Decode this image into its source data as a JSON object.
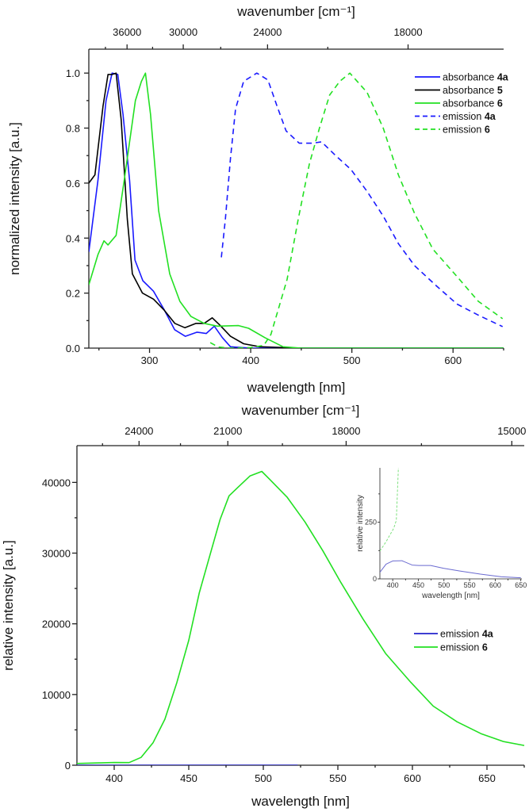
{
  "chart_data": [
    {
      "type": "line",
      "title": "",
      "xlabel": "wavelength [nm]",
      "ylabel": "normalized intensity [a.u.]",
      "x2label": "wavenumber [cm⁻¹]",
      "xlim": [
        240,
        650
      ],
      "ylim": [
        0,
        1.087
      ],
      "xticks": [
        300,
        400,
        500,
        600
      ],
      "xtick_labels": [
        "300",
        "400",
        "500",
        "600"
      ],
      "xminor": [
        250,
        350,
        450,
        550,
        650
      ],
      "yticks": [
        0,
        0.2,
        0.4,
        0.6,
        0.8,
        1.0
      ],
      "ytick_labels": [
        "0.0",
        "0.2",
        "0.4",
        "0.6",
        "0.8",
        "1.0"
      ],
      "yminor": [
        0.1,
        0.3,
        0.5,
        0.7,
        0.9
      ],
      "x2ticks": [
        36000,
        30000,
        24000,
        18000
      ],
      "x2tick_labels": [
        "36000",
        "30000",
        "24000",
        "18000"
      ],
      "x2minor": [
        39000,
        33000,
        27000,
        21000
      ],
      "legend": "top-right",
      "grid": false,
      "series": [
        {
          "label": "absorbance",
          "compound": "4a",
          "color": "#1a1aff",
          "dash": "solid",
          "x": [
            240,
            249,
            257,
            263,
            268.6,
            273.8,
            280.3,
            285.6,
            293.4,
            303.9,
            314.4,
            324.8,
            335.3,
            347,
            356,
            364,
            372,
            380,
            400,
            650
          ],
          "y": [
            0.35,
            0.61,
            0.9,
            1.0,
            0.995,
            0.85,
            0.61,
            0.32,
            0.245,
            0.207,
            0.14,
            0.067,
            0.043,
            0.058,
            0.053,
            0.08,
            0.038,
            0.005,
            0,
            0
          ]
        },
        {
          "label": "absorbance",
          "compound": "5",
          "color": "#000000",
          "dash": "solid",
          "x": [
            240,
            246,
            254,
            259,
            263,
            267,
            272,
            278,
            283,
            293,
            304,
            314,
            325,
            335,
            346,
            354,
            362,
            370,
            380,
            393,
            409,
            450,
            650
          ],
          "y": [
            0.6,
            0.63,
            0.88,
            0.995,
            0.995,
            1.0,
            0.83,
            0.47,
            0.27,
            0.2,
            0.178,
            0.14,
            0.09,
            0.074,
            0.09,
            0.09,
            0.11,
            0.082,
            0.043,
            0.016,
            0.005,
            0,
            0
          ]
        },
        {
          "label": "absorbance",
          "compound": "6",
          "color": "#22e022",
          "dash": "solid",
          "x": [
            240,
            249,
            255,
            259,
            267,
            275,
            286,
            292,
            296,
            301,
            309,
            320,
            330,
            341,
            354,
            367,
            388,
            398,
            414,
            432,
            450,
            650
          ],
          "y": [
            0.23,
            0.34,
            0.39,
            0.375,
            0.41,
            0.61,
            0.9,
            0.97,
            1.0,
            0.85,
            0.5,
            0.27,
            0.17,
            0.115,
            0.09,
            0.08,
            0.082,
            0.072,
            0.038,
            0.005,
            0,
            0
          ]
        },
        {
          "label": "emission",
          "compound": "4a",
          "color": "#1a1aff",
          "dash": "dashed",
          "x": [
            371,
            375,
            380,
            385,
            393,
            406,
            417,
            426,
            435,
            448,
            461,
            470,
            484,
            499,
            515,
            531,
            546,
            562,
            584,
            604,
            625,
            649
          ],
          "y": [
            0.33,
            0.47,
            0.69,
            0.87,
            0.97,
            1.0,
            0.975,
            0.88,
            0.79,
            0.745,
            0.745,
            0.75,
            0.7,
            0.65,
            0.57,
            0.48,
            0.38,
            0.3,
            0.225,
            0.16,
            0.12,
            0.078
          ]
        },
        {
          "label": "emission",
          "compound": "6",
          "color": "#22e022",
          "dash": "dashed",
          "x": [
            360,
            368,
            380,
            400,
            413,
            420,
            436,
            447,
            458,
            468,
            478,
            488,
            498,
            515,
            531,
            546,
            562,
            580,
            604,
            625,
            649
          ],
          "y": [
            0.02,
            0.004,
            0,
            0.002,
            0.01,
            0.05,
            0.25,
            0.47,
            0.67,
            0.8,
            0.92,
            0.97,
            1.0,
            0.93,
            0.8,
            0.63,
            0.49,
            0.36,
            0.26,
            0.17,
            0.107
          ]
        }
      ]
    },
    {
      "type": "line",
      "title": "",
      "xlabel": "wavelength [nm]",
      "ylabel": "relative intensity [a.u.]",
      "x2label": "wavenumber [cm⁻¹]",
      "xlim": [
        375,
        675
      ],
      "ylim": [
        0,
        45200
      ],
      "xticks": [
        400,
        450,
        500,
        550,
        600,
        650
      ],
      "xtick_labels": [
        "400",
        "450",
        "500",
        "550",
        "600",
        "650"
      ],
      "xminor": [
        425,
        475,
        525,
        575,
        625,
        675
      ],
      "yticks": [
        0,
        10000,
        20000,
        30000,
        40000
      ],
      "ytick_labels": [
        "0",
        "10000",
        "20000",
        "30000",
        "40000"
      ],
      "yminor": [
        5000,
        15000,
        25000,
        35000
      ],
      "x2ticks": [
        24000,
        21000,
        18000,
        15000
      ],
      "x2tick_labels": [
        "24000",
        "21000",
        "18000",
        "15000"
      ],
      "x2minor": [
        25500,
        22500,
        19500,
        16500
      ],
      "legend": "center-right",
      "grid": false,
      "series": [
        {
          "label": "emission",
          "compound": "4a",
          "color": "#2222cc",
          "dash": "solid",
          "x": [
            375,
            400,
            450,
            500,
            523
          ],
          "y": [
            0,
            0,
            0,
            0,
            0
          ]
        },
        {
          "label": "emission",
          "compound": "6",
          "color": "#22e022",
          "dash": "solid",
          "x": [
            375,
            390,
            400,
            410,
            418,
            426,
            434,
            442,
            450,
            457,
            465,
            471,
            477,
            483,
            491,
            499,
            504,
            516,
            528,
            540,
            552,
            567,
            582,
            599,
            614,
            630,
            646,
            661,
            675
          ],
          "y": [
            250,
            330,
            380,
            370,
            1100,
            3160,
            6500,
            11700,
            17660,
            24350,
            30300,
            34760,
            38100,
            39300,
            40900,
            41560,
            40500,
            37900,
            34400,
            30300,
            25840,
            20630,
            15800,
            11710,
            8360,
            6130,
            4460,
            3350,
            2790
          ]
        }
      ]
    },
    {
      "type": "line",
      "title": "",
      "xlabel": "wavelength [nm]",
      "ylabel": "relative intensity",
      "xlim": [
        375,
        652
      ],
      "ylim": [
        0,
        490
      ],
      "xticks": [
        400,
        450,
        500,
        550,
        600,
        650
      ],
      "xtick_labels": [
        "400",
        "450",
        "500",
        "550",
        "600",
        "650"
      ],
      "xminor": [
        425,
        475,
        525,
        575,
        625
      ],
      "yticks": [
        0,
        250
      ],
      "ytick_labels": [
        "0",
        "250"
      ],
      "yminor": [
        125,
        375
      ],
      "legend": "none",
      "grid": false,
      "series": [
        {
          "label": "emission",
          "compound": "4a",
          "color": "#6a6ad0",
          "dash": "solid",
          "x": [
            375,
            387,
            400,
            418,
            438,
            451,
            474,
            499,
            530,
            571,
            612,
            650
          ],
          "y": [
            29,
            65,
            79,
            80,
            61,
            59,
            59,
            47,
            35,
            21,
            9,
            5
          ]
        },
        {
          "label": "emission",
          "compound": "6",
          "color": "#7ee07e",
          "dash": "dashed",
          "x": [
            375,
            387,
            402,
            407,
            411
          ],
          "y": [
            123,
            164,
            223,
            258,
            490
          ]
        }
      ]
    }
  ]
}
